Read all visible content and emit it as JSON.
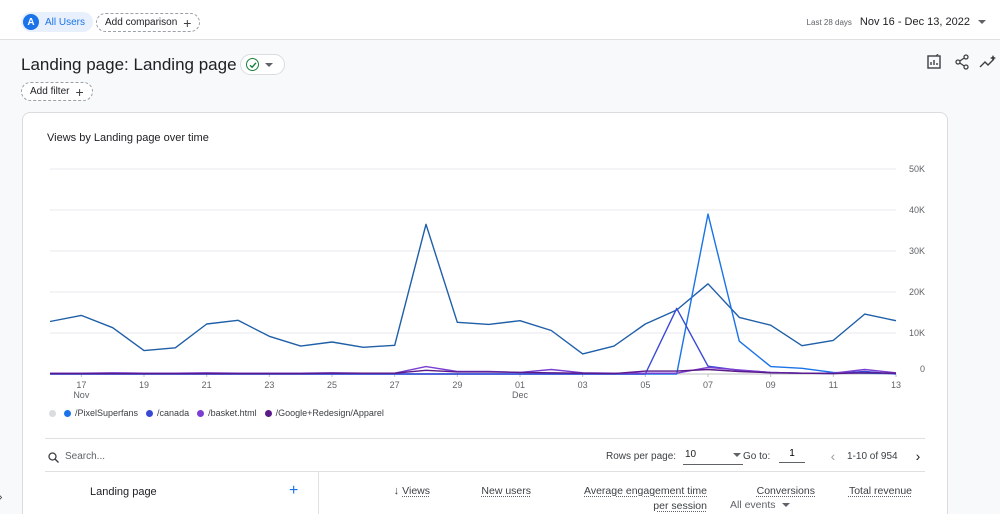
{
  "segment": {
    "avatar_letter": "A",
    "label": "All Users"
  },
  "comparison": {
    "label": "Add comparison"
  },
  "date_range": {
    "hint": "Last 28 days",
    "value": "Nov 16 - Dec 13, 2022"
  },
  "page": {
    "title": "Landing page: Landing page"
  },
  "filter": {
    "label": "Add filter"
  },
  "toolbar": {
    "icons": [
      "edit-report-icon",
      "share-icon",
      "insights-icon"
    ]
  },
  "chart_data": {
    "type": "line",
    "title": "Views by Landing page over time",
    "x": [
      "Nov 16",
      "Nov 17",
      "Nov 18",
      "Nov 19",
      "Nov 20",
      "Nov 21",
      "Nov 22",
      "Nov 23",
      "Nov 24",
      "Nov 25",
      "Nov 26",
      "Nov 27",
      "Nov 28",
      "Nov 29",
      "Nov 30",
      "Dec 01",
      "Dec 02",
      "Dec 03",
      "Dec 04",
      "Dec 05",
      "Dec 06",
      "Dec 07",
      "Dec 08",
      "Dec 09",
      "Dec 10",
      "Dec 11",
      "Dec 12",
      "Dec 13"
    ],
    "xtick_labels": [
      {
        "index": 1,
        "label": "17",
        "sub": "Nov"
      },
      {
        "index": 3,
        "label": "19",
        "sub": ""
      },
      {
        "index": 5,
        "label": "21",
        "sub": ""
      },
      {
        "index": 7,
        "label": "23",
        "sub": ""
      },
      {
        "index": 9,
        "label": "25",
        "sub": ""
      },
      {
        "index": 11,
        "label": "27",
        "sub": ""
      },
      {
        "index": 13,
        "label": "29",
        "sub": ""
      },
      {
        "index": 15,
        "label": "01",
        "sub": "Dec"
      },
      {
        "index": 17,
        "label": "03",
        "sub": ""
      },
      {
        "index": 19,
        "label": "05",
        "sub": ""
      },
      {
        "index": 21,
        "label": "07",
        "sub": ""
      },
      {
        "index": 23,
        "label": "09",
        "sub": ""
      },
      {
        "index": 25,
        "label": "11",
        "sub": ""
      },
      {
        "index": 27,
        "label": "13",
        "sub": ""
      }
    ],
    "yticks": [
      {
        "value": 0,
        "label": "0"
      },
      {
        "value": 10000,
        "label": "10K"
      },
      {
        "value": 20000,
        "label": "20K"
      },
      {
        "value": 30000,
        "label": "30K"
      },
      {
        "value": 40000,
        "label": "40K"
      },
      {
        "value": 50000,
        "label": "50K"
      }
    ],
    "ylim": [
      0,
      50000
    ],
    "grid": true,
    "legend_position": "bottom-left",
    "series": [
      {
        "name": "",
        "color": "#1f5fa8",
        "values": [
          12800,
          14300,
          11300,
          5700,
          6400,
          12200,
          13100,
          9200,
          6800,
          7800,
          6500,
          7000,
          36500,
          12600,
          12100,
          13000,
          10600,
          4900,
          6800,
          12200,
          15600,
          22000,
          13800,
          11900,
          6900,
          8200,
          14600,
          13000
        ]
      },
      {
        "name": "/PixelSuperfans",
        "color": "#1a73e8",
        "values": [
          0,
          0,
          0,
          0,
          0,
          0,
          0,
          0,
          0,
          0,
          0,
          0,
          0,
          0,
          0,
          0,
          0,
          0,
          0,
          0,
          0,
          39000,
          8000,
          1800,
          1400,
          400,
          200,
          100
        ]
      },
      {
        "name": "/canada",
        "color": "#3949d6",
        "values": [
          0,
          0,
          0,
          0,
          0,
          0,
          0,
          0,
          0,
          0,
          0,
          0,
          0,
          0,
          0,
          0,
          0,
          0,
          0,
          0,
          16000,
          1900,
          900,
          400,
          200,
          100,
          600,
          0
        ]
      },
      {
        "name": "/basket.html",
        "color": "#7b3fd1",
        "values": [
          200,
          200,
          300,
          200,
          200,
          300,
          200,
          200,
          200,
          300,
          200,
          200,
          1800,
          600,
          600,
          400,
          1100,
          300,
          200,
          200,
          200,
          1600,
          1000,
          400,
          200,
          200,
          1100,
          300
        ]
      },
      {
        "name": "/Google+Redesign/Apparel",
        "color": "#5b1a8a",
        "values": [
          100,
          100,
          100,
          100,
          100,
          100,
          100,
          100,
          100,
          200,
          200,
          200,
          900,
          500,
          500,
          400,
          300,
          200,
          100,
          700,
          700,
          1100,
          600,
          300,
          200,
          100,
          300,
          200
        ]
      }
    ]
  },
  "search": {
    "placeholder": "Search..."
  },
  "pagination": {
    "rows_label": "Rows per page:",
    "rows_value": "10",
    "goto_label": "Go to:",
    "goto_value": "1",
    "range": "1-10 of 954"
  },
  "table": {
    "dimension_header": "Landing page",
    "metrics": [
      {
        "label": "Views",
        "sorted": true
      },
      {
        "label": "New users"
      },
      {
        "label": "Average engagement time",
        "label2": "per session"
      },
      {
        "label": "Conversions",
        "sub": "All events"
      },
      {
        "label": "Total revenue"
      }
    ]
  }
}
